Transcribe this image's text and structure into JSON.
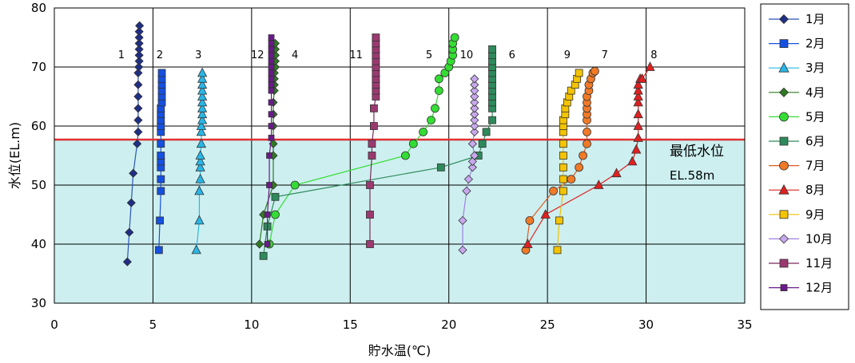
{
  "chart_data": {
    "type": "line",
    "xlabel": "貯水温(℃)",
    "ylabel": "水位(EL.m)",
    "xlim": [
      0,
      35
    ],
    "ylim": [
      30,
      80
    ],
    "xticks": [
      "0",
      "5",
      "10",
      "15",
      "20",
      "25",
      "30",
      "35"
    ],
    "yticks": [
      "30",
      "40",
      "50",
      "60",
      "70",
      "80"
    ],
    "grid": true,
    "legend_position": "right",
    "min_level": {
      "value": 57.7,
      "label": "最低水位",
      "sublabel": "EL.58m",
      "line_color": "#e03030",
      "fill_color": "#cdeff0"
    },
    "series": [
      {
        "name": "1月",
        "tag": "1",
        "marker": "diamond",
        "color": "#1f2f86",
        "line": "#2b55b8",
        "points": [
          [
            3.7,
            37
          ],
          [
            3.8,
            42
          ],
          [
            3.9,
            47
          ],
          [
            4.0,
            52
          ],
          [
            4.2,
            57
          ],
          [
            4.25,
            59
          ],
          [
            4.25,
            61
          ],
          [
            4.25,
            63
          ],
          [
            4.25,
            65
          ],
          [
            4.25,
            67
          ],
          [
            4.25,
            69
          ],
          [
            4.28,
            70
          ],
          [
            4.3,
            71
          ],
          [
            4.3,
            72
          ],
          [
            4.3,
            73
          ],
          [
            4.3,
            74
          ],
          [
            4.3,
            75
          ],
          [
            4.3,
            76
          ],
          [
            4.32,
            77
          ]
        ]
      },
      {
        "name": "2月",
        "tag": "2",
        "marker": "square",
        "color": "#1550e0",
        "line": "#1550e0",
        "points": [
          [
            5.3,
            39
          ],
          [
            5.35,
            44
          ],
          [
            5.4,
            49
          ],
          [
            5.4,
            51
          ],
          [
            5.4,
            53
          ],
          [
            5.4,
            54
          ],
          [
            5.4,
            55
          ],
          [
            5.4,
            57
          ],
          [
            5.4,
            59
          ],
          [
            5.4,
            60
          ],
          [
            5.4,
            61
          ],
          [
            5.4,
            62
          ],
          [
            5.4,
            63
          ],
          [
            5.45,
            64
          ],
          [
            5.45,
            65
          ],
          [
            5.45,
            66
          ],
          [
            5.45,
            67
          ],
          [
            5.45,
            68
          ],
          [
            5.45,
            69
          ]
        ]
      },
      {
        "name": "3月",
        "tag": "3",
        "marker": "triangle",
        "color": "#29b6e6",
        "line": "#29b6e6",
        "points": [
          [
            7.2,
            39
          ],
          [
            7.35,
            44
          ],
          [
            7.35,
            49
          ],
          [
            7.4,
            51
          ],
          [
            7.4,
            53
          ],
          [
            7.4,
            54
          ],
          [
            7.4,
            55
          ],
          [
            7.45,
            57
          ],
          [
            7.45,
            59
          ],
          [
            7.45,
            60
          ],
          [
            7.5,
            61
          ],
          [
            7.5,
            62
          ],
          [
            7.5,
            63
          ],
          [
            7.5,
            64
          ],
          [
            7.5,
            65
          ],
          [
            7.5,
            66
          ],
          [
            7.5,
            67
          ],
          [
            7.5,
            68
          ],
          [
            7.5,
            69
          ]
        ]
      },
      {
        "name": "4月",
        "tag": "4",
        "marker": "diamond",
        "color": "#2f7a22",
        "line": "#2f7a22",
        "points": [
          [
            10.4,
            40
          ],
          [
            10.6,
            45
          ],
          [
            11.1,
            50
          ],
          [
            11.1,
            55
          ],
          [
            11.1,
            57
          ],
          [
            11.1,
            60
          ],
          [
            11.1,
            62
          ],
          [
            11.1,
            64
          ],
          [
            11.15,
            66
          ],
          [
            11.15,
            67
          ],
          [
            11.15,
            68
          ],
          [
            11.15,
            69
          ],
          [
            11.2,
            70
          ],
          [
            11.2,
            71
          ],
          [
            11.2,
            72
          ],
          [
            11.2,
            73
          ],
          [
            11.2,
            74
          ]
        ]
      },
      {
        "name": "5月",
        "tag": "5",
        "marker": "circle",
        "color": "#33dd33",
        "line": "#33dd33",
        "points": [
          [
            10.9,
            40
          ],
          [
            11.2,
            45
          ],
          [
            12.2,
            50
          ],
          [
            17.8,
            55
          ],
          [
            18.2,
            57
          ],
          [
            18.7,
            59
          ],
          [
            19.1,
            61
          ],
          [
            19.3,
            63
          ],
          [
            19.5,
            66
          ],
          [
            19.5,
            68
          ],
          [
            19.8,
            69
          ],
          [
            20.0,
            70
          ],
          [
            20.1,
            71
          ],
          [
            20.2,
            72
          ],
          [
            20.2,
            73
          ],
          [
            20.2,
            74
          ],
          [
            20.3,
            75
          ]
        ]
      },
      {
        "name": "6月",
        "tag": "6",
        "marker": "square",
        "color": "#2e8a5a",
        "line": "#2e8a5a",
        "points": [
          [
            10.6,
            38
          ],
          [
            10.8,
            43
          ],
          [
            11.2,
            48
          ],
          [
            19.6,
            53
          ],
          [
            21.5,
            55
          ],
          [
            21.7,
            57
          ],
          [
            21.9,
            59
          ],
          [
            22.2,
            61
          ],
          [
            22.2,
            63
          ],
          [
            22.2,
            64
          ],
          [
            22.2,
            65
          ],
          [
            22.2,
            66
          ],
          [
            22.2,
            67
          ],
          [
            22.2,
            68
          ],
          [
            22.2,
            69
          ],
          [
            22.2,
            70
          ],
          [
            22.2,
            71
          ],
          [
            22.2,
            72
          ],
          [
            22.2,
            73
          ]
        ]
      },
      {
        "name": "7月",
        "tag": "7",
        "marker": "circle",
        "color": "#f07a28",
        "line": "#e05a20",
        "points": [
          [
            23.9,
            39
          ],
          [
            24.1,
            44
          ],
          [
            25.3,
            49
          ],
          [
            26.2,
            51
          ],
          [
            26.6,
            53
          ],
          [
            26.8,
            55
          ],
          [
            27.0,
            57
          ],
          [
            27.0,
            59
          ],
          [
            27.0,
            61
          ],
          [
            27.0,
            62
          ],
          [
            27.0,
            63
          ],
          [
            27.0,
            64
          ],
          [
            27.0,
            65
          ],
          [
            27.1,
            66
          ],
          [
            27.1,
            67
          ],
          [
            27.2,
            68
          ],
          [
            27.3,
            69
          ],
          [
            27.4,
            69.3
          ]
        ]
      },
      {
        "name": "8月",
        "tag": "8",
        "marker": "triangle",
        "color": "#e02020",
        "line": "#e02020",
        "points": [
          [
            24.0,
            40
          ],
          [
            24.9,
            45
          ],
          [
            27.6,
            50
          ],
          [
            28.5,
            52
          ],
          [
            29.3,
            54
          ],
          [
            29.5,
            56
          ],
          [
            29.6,
            58
          ],
          [
            29.6,
            60
          ],
          [
            29.6,
            62
          ],
          [
            29.6,
            64
          ],
          [
            29.6,
            65
          ],
          [
            29.6,
            66
          ],
          [
            29.6,
            67
          ],
          [
            29.7,
            68
          ],
          [
            29.8,
            68
          ],
          [
            30.2,
            70
          ]
        ]
      },
      {
        "name": "9月",
        "tag": "9",
        "marker": "square",
        "color": "#f5c400",
        "line": "#f0c000",
        "points": [
          [
            25.5,
            39
          ],
          [
            25.6,
            44
          ],
          [
            25.8,
            49
          ],
          [
            25.8,
            51
          ],
          [
            25.8,
            53
          ],
          [
            25.8,
            55
          ],
          [
            25.8,
            57
          ],
          [
            25.8,
            59
          ],
          [
            25.8,
            60
          ],
          [
            25.8,
            61
          ],
          [
            25.9,
            62
          ],
          [
            25.9,
            63
          ],
          [
            26.0,
            64
          ],
          [
            26.1,
            65
          ],
          [
            26.2,
            66
          ],
          [
            26.4,
            67
          ],
          [
            26.5,
            68
          ],
          [
            26.6,
            69
          ]
        ]
      },
      {
        "name": "10月",
        "tag": "10",
        "marker": "diamond",
        "color": "#c8a8ee",
        "line": "#a080e0",
        "points": [
          [
            20.7,
            39
          ],
          [
            20.7,
            44
          ],
          [
            20.9,
            49
          ],
          [
            21.0,
            51
          ],
          [
            21.2,
            53
          ],
          [
            21.2,
            54
          ],
          [
            21.3,
            55
          ],
          [
            21.2,
            57
          ],
          [
            21.3,
            59
          ],
          [
            21.3,
            60
          ],
          [
            21.3,
            61
          ],
          [
            21.3,
            62
          ],
          [
            21.3,
            63
          ],
          [
            21.3,
            64
          ],
          [
            21.3,
            65
          ],
          [
            21.3,
            66
          ],
          [
            21.3,
            67
          ],
          [
            21.3,
            68
          ]
        ]
      },
      {
        "name": "11月",
        "tag": "11",
        "marker": "square",
        "color": "#9a3a70",
        "line": "#7a2a5a",
        "points": [
          [
            16.0,
            40
          ],
          [
            16.0,
            45
          ],
          [
            16.0,
            50
          ],
          [
            16.1,
            55
          ],
          [
            16.1,
            57
          ],
          [
            16.2,
            60
          ],
          [
            16.2,
            63
          ],
          [
            16.3,
            65
          ],
          [
            16.3,
            66
          ],
          [
            16.3,
            67
          ],
          [
            16.3,
            68
          ],
          [
            16.3,
            69
          ],
          [
            16.3,
            70
          ],
          [
            16.3,
            71
          ],
          [
            16.3,
            72
          ],
          [
            16.3,
            73
          ],
          [
            16.3,
            74
          ],
          [
            16.3,
            75
          ]
        ]
      },
      {
        "name": "12月",
        "tag": "12",
        "marker": "square_small",
        "color": "#6a1a8a",
        "line": "#6a1a8a",
        "points": [
          [
            10.8,
            40
          ],
          [
            10.8,
            45
          ],
          [
            10.9,
            50
          ],
          [
            10.9,
            55
          ],
          [
            11.0,
            58
          ],
          [
            11.0,
            60
          ],
          [
            11.0,
            62
          ],
          [
            11.0,
            64
          ],
          [
            11.0,
            66
          ],
          [
            11.0,
            67
          ],
          [
            11.0,
            68
          ],
          [
            11.0,
            69
          ],
          [
            11.0,
            70
          ],
          [
            11.0,
            71
          ],
          [
            11.0,
            72
          ],
          [
            11.0,
            73
          ],
          [
            11.0,
            74
          ],
          [
            11.0,
            75
          ]
        ]
      }
    ],
    "series_tags": [
      {
        "text": "1",
        "x": 3.4,
        "y": 71.5
      },
      {
        "text": "2",
        "x": 5.35,
        "y": 71.5
      },
      {
        "text": "3",
        "x": 7.3,
        "y": 71.5
      },
      {
        "text": "12",
        "x": 10.3,
        "y": 71.5
      },
      {
        "text": "4",
        "x": 12.2,
        "y": 71.5
      },
      {
        "text": "11",
        "x": 15.3,
        "y": 71.5
      },
      {
        "text": "5",
        "x": 19.0,
        "y": 71.5
      },
      {
        "text": "10",
        "x": 20.9,
        "y": 71.5
      },
      {
        "text": "6",
        "x": 23.2,
        "y": 71.5
      },
      {
        "text": "9",
        "x": 26.0,
        "y": 71.5
      },
      {
        "text": "7",
        "x": 27.9,
        "y": 71.5
      },
      {
        "text": "8",
        "x": 30.4,
        "y": 71.5
      }
    ]
  }
}
